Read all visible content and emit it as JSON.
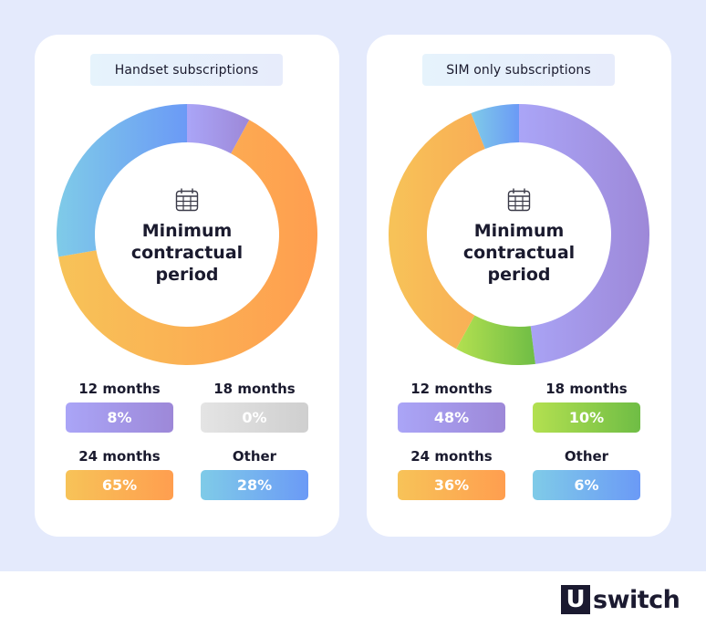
{
  "chart_data": [
    {
      "type": "pie",
      "variant": "donut",
      "title": "Handset subscriptions",
      "center_label": "Minimum contractual period",
      "categories": [
        "12 months",
        "18 months",
        "24 months",
        "Other"
      ],
      "values": [
        8,
        0,
        65,
        28
      ],
      "unit": "%",
      "colors": [
        "#a39be8",
        "#d9d9d9",
        "#fbb052",
        "#75b4ef"
      ],
      "start_angle": "12 o'clock",
      "direction": "clockwise",
      "legend_position": "bottom"
    },
    {
      "type": "pie",
      "variant": "donut",
      "title": "SIM only subscriptions",
      "center_label": "Minimum contractual period",
      "categories": [
        "12 months",
        "18 months",
        "24 months",
        "Other"
      ],
      "values": [
        48,
        10,
        36,
        6
      ],
      "unit": "%",
      "colors": [
        "#a39be8",
        "#8fcf4a",
        "#fbb052",
        "#75b4ef"
      ],
      "start_angle": "12 o'clock",
      "direction": "clockwise",
      "legend_position": "bottom"
    }
  ],
  "cards": [
    {
      "title": "Handset subscriptions",
      "center_label": "Minimum contractual period",
      "center_icon": "calendar-icon",
      "legend": [
        {
          "label": "12 months",
          "value": "8%"
        },
        {
          "label": "18 months",
          "value": "0%"
        },
        {
          "label": "24 months",
          "value": "65%"
        },
        {
          "label": "Other",
          "value": "28%"
        }
      ]
    },
    {
      "title": "SIM only subscriptions",
      "center_label": "Minimum contractual period",
      "center_icon": "calendar-icon",
      "legend": [
        {
          "label": "12 months",
          "value": "48%"
        },
        {
          "label": "18 months",
          "value": "10%"
        },
        {
          "label": "24 months",
          "value": "36%"
        },
        {
          "label": "Other",
          "value": "6%"
        }
      ]
    }
  ],
  "brand": {
    "logo_mark": "U",
    "logo_text": "switch"
  },
  "colors": {
    "background": "#e4eafc",
    "card": "#ffffff",
    "text": "#1a1a2e",
    "purple": "#a39be8",
    "grey": "#d9d9d9",
    "orange": "#fbb052",
    "blue": "#75b4ef",
    "green": "#8fcf4a"
  }
}
